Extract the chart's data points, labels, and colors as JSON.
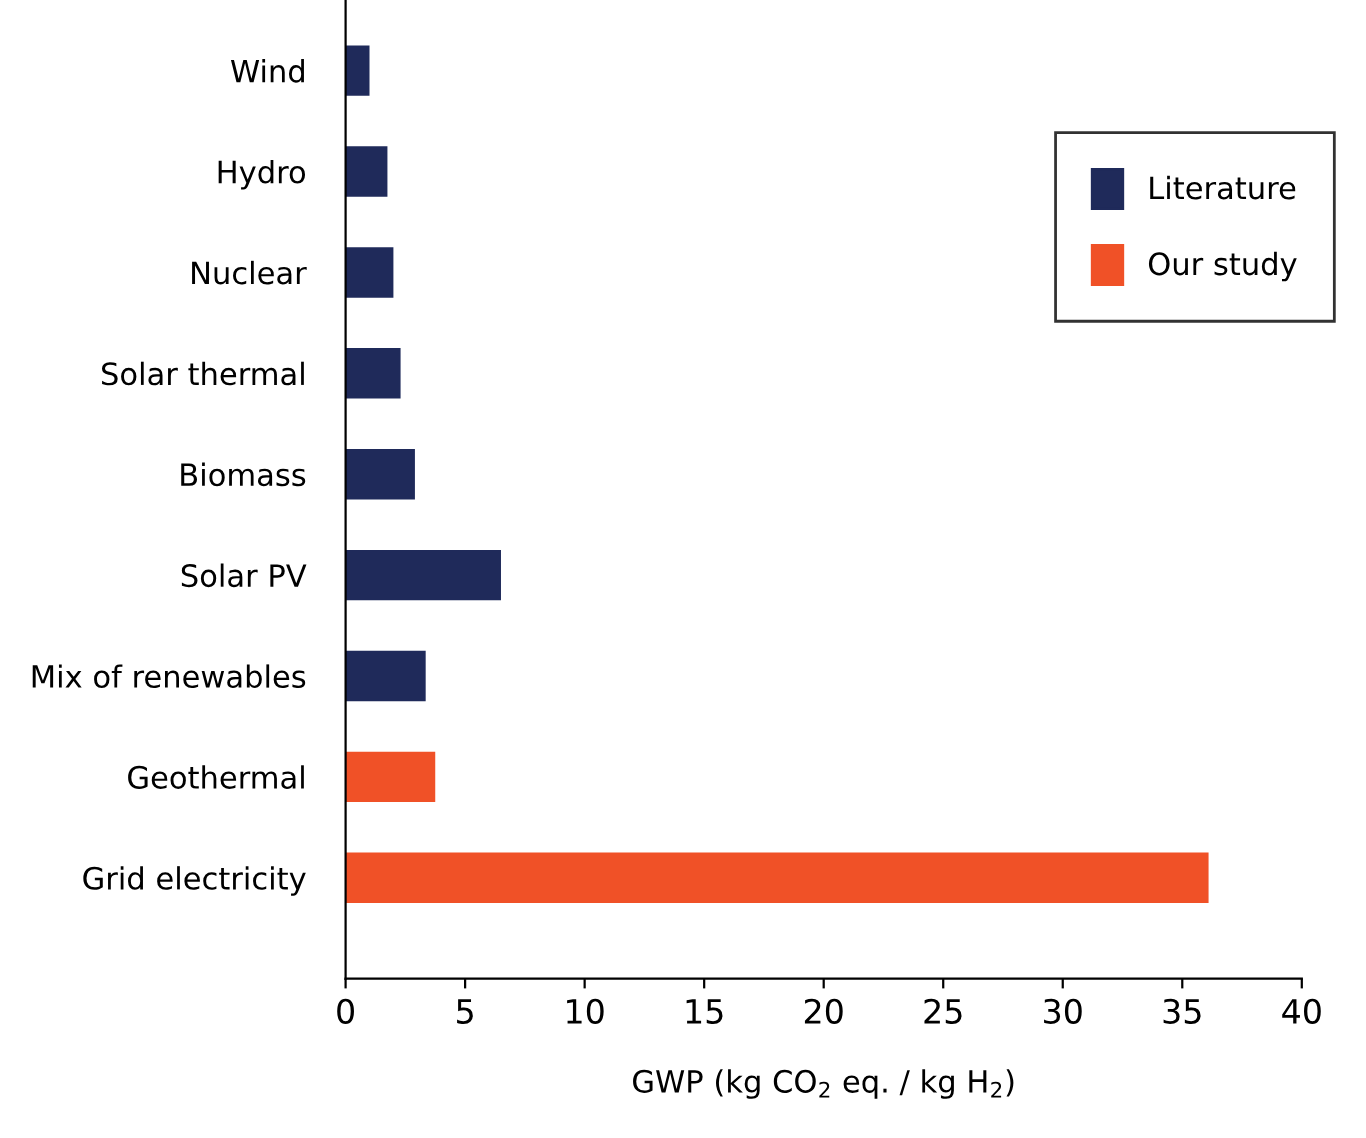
{
  "chart_data": {
    "type": "bar",
    "orientation": "horizontal",
    "xlabel": "GWP (kg CO$_{2}$ eq. / kg H$_{2}$)",
    "categories": [
      "Wind",
      "Hydro",
      "Nuclear",
      "Solar thermal",
      "Biomass",
      "Solar PV",
      "Mix of renewables",
      "Geothermal",
      "Grid electricity"
    ],
    "series": [
      {
        "name": "Literature",
        "color": "#1f2a5a",
        "values": [
          1.0,
          1.75,
          2.0,
          2.3,
          2.9,
          6.5,
          3.35,
          null,
          null
        ]
      },
      {
        "name": "Our study",
        "color": "#f05127",
        "values": [
          null,
          null,
          null,
          null,
          null,
          null,
          null,
          3.75,
          36.1
        ]
      }
    ],
    "xlim": [
      0,
      40
    ],
    "xticks": [
      0,
      5,
      10,
      15,
      20,
      25,
      30,
      35,
      40
    ],
    "grid": false,
    "legend": "top right"
  }
}
